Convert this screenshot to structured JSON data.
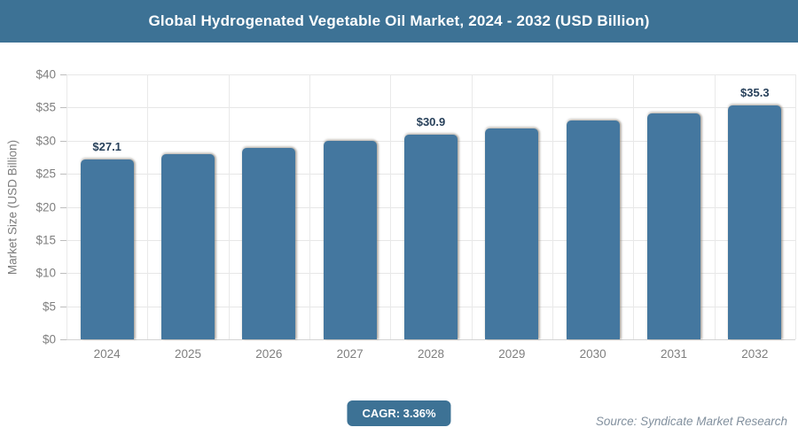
{
  "header": {
    "title": "Global Hydrogenated Vegetable Oil Market, 2024 - 2032 (USD Billion)"
  },
  "footer": {
    "cagr_label": "CAGR: 3.36%",
    "source": "Source: Syndicate Market Research"
  },
  "colors": {
    "header_bg": "#3d7295",
    "badge_bg": "#3d7295",
    "bar": "#44779f",
    "data_label": "#27405a",
    "axis_text": "#7f7f7f",
    "gridline": "#e7e7e7",
    "source_text": "#82909e"
  },
  "chart_data": {
    "type": "bar",
    "title": "Global Hydrogenated Vegetable Oil Market, 2024 - 2032 (USD Billion)",
    "categories": [
      "2024",
      "2025",
      "2026",
      "2027",
      "2028",
      "2029",
      "2030",
      "2031",
      "2032"
    ],
    "values": [
      27.1,
      28.0,
      28.9,
      29.9,
      30.9,
      31.9,
      33.0,
      34.1,
      35.3
    ],
    "data_labels": [
      "$27.1",
      "",
      "",
      "",
      "$30.9",
      "",
      "",
      "",
      "$35.3"
    ],
    "xlabel": "",
    "ylabel": "Market Size (USD Billion)",
    "ylim": [
      0,
      40
    ],
    "ytick_step": 5,
    "ytick_prefix": "$",
    "grid": true,
    "legend": "none",
    "cagr": "3.36%"
  }
}
